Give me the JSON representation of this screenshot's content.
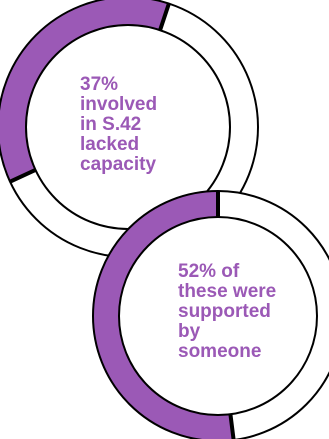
{
  "chart_data": [
    {
      "type": "pie",
      "label_lines": [
        "37%",
        "involved",
        "in S.42",
        "lacked",
        "capacity"
      ],
      "values": [
        37,
        63
      ],
      "colors": {
        "fill": "#9b59b6",
        "rest": "#ffffff",
        "outline": "#000000",
        "text": "#9b59b6"
      }
    },
    {
      "type": "pie",
      "label_lines": [
        "52% of",
        "these were",
        "supported",
        "by",
        "someone"
      ],
      "values": [
        52,
        48
      ],
      "colors": {
        "fill": "#9b59b6",
        "rest": "#ffffff",
        "outline": "#000000",
        "text": "#9b59b6"
      }
    }
  ]
}
